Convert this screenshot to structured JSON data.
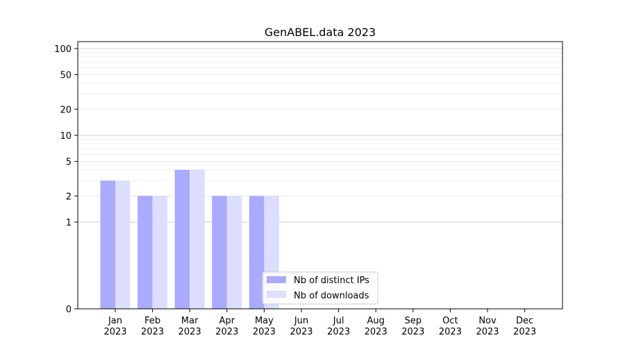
{
  "chart_data": {
    "type": "bar",
    "title": "GenABEL.data 2023",
    "xlabel": "",
    "ylabel": "",
    "y_scale": "symlog",
    "ylim": [
      0,
      120
    ],
    "y_ticks": [
      0,
      1,
      2,
      5,
      10,
      20,
      50,
      100
    ],
    "y_tick_labels": [
      "0",
      "1",
      "2",
      "5",
      "10",
      "20",
      "50",
      "100"
    ],
    "grid": true,
    "legend_position": "bottom-center",
    "categories": [
      {
        "month": "Jan",
        "year": "2023"
      },
      {
        "month": "Feb",
        "year": "2023"
      },
      {
        "month": "Mar",
        "year": "2023"
      },
      {
        "month": "Apr",
        "year": "2023"
      },
      {
        "month": "May",
        "year": "2023"
      },
      {
        "month": "Jun",
        "year": "2023"
      },
      {
        "month": "Jul",
        "year": "2023"
      },
      {
        "month": "Aug",
        "year": "2023"
      },
      {
        "month": "Sep",
        "year": "2023"
      },
      {
        "month": "Oct",
        "year": "2023"
      },
      {
        "month": "Nov",
        "year": "2023"
      },
      {
        "month": "Dec",
        "year": "2023"
      }
    ],
    "series": [
      {
        "name": "Nb of distinct IPs",
        "color": "#aaaaff",
        "values": [
          3,
          2,
          4,
          2,
          2,
          0,
          0,
          0,
          0,
          0,
          0,
          0
        ]
      },
      {
        "name": "Nb of downloads",
        "color": "#ddddff",
        "values": [
          3,
          2,
          4,
          2,
          2,
          0,
          0,
          0,
          0,
          0,
          0,
          0
        ]
      }
    ]
  }
}
